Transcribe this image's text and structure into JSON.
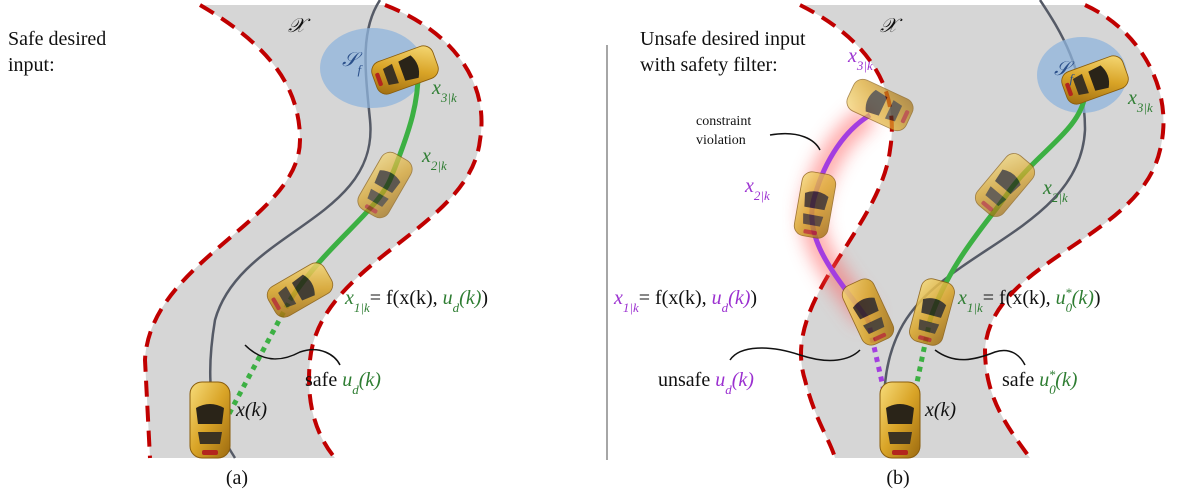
{
  "panel_a": {
    "heading": [
      "Safe desired",
      "input:"
    ],
    "state_space": "𝒳",
    "terminal_set": {
      "symbol": "𝒮",
      "sub": "f"
    },
    "x3": {
      "symbol": "x",
      "sub": "3|k"
    },
    "x2": {
      "symbol": "x",
      "sub": "2|k"
    },
    "x1": {
      "symbol": "x",
      "sub": "1|k",
      "rhs": "= f(x(k), ",
      "input": "u",
      "input_sub": "d",
      "input_arg": "(k)",
      "close": ")"
    },
    "input_note": {
      "prefix": "safe ",
      "input": "u",
      "input_sub": "d",
      "input_arg": "(k)"
    },
    "current_state": "x(k)",
    "caption": "(a)"
  },
  "panel_b": {
    "heading": [
      "Unsafe desired input",
      "with safety filter:"
    ],
    "state_space": "𝒳",
    "terminal_set": {
      "symbol": "𝒮",
      "sub": "f"
    },
    "violation_note": [
      "constraint",
      "violation"
    ],
    "unsafe_x3": {
      "symbol": "x",
      "sub": "3|k"
    },
    "unsafe_x2": {
      "symbol": "x",
      "sub": "2|k"
    },
    "unsafe_x1": {
      "symbol": "x",
      "sub": "1|k",
      "rhs": "= f(x(k), ",
      "input": "u",
      "input_sub": "d",
      "input_arg": "(k)",
      "close": ")"
    },
    "safe_x3": {
      "symbol": "x",
      "sub": "3|k"
    },
    "safe_x2": {
      "symbol": "x",
      "sub": "2|k"
    },
    "safe_x1": {
      "symbol": "x",
      "sub": "1|k",
      "rhs": "= f(x(k), ",
      "input": "u",
      "input_sub": "0",
      "input_sup": "*",
      "input_arg": "(k)",
      "close": ")"
    },
    "unsafe_note": {
      "prefix": "unsafe ",
      "input": "u",
      "input_sub": "d",
      "input_arg": "(k)"
    },
    "safe_note": {
      "prefix": "safe ",
      "input": "u",
      "input_sub": "0",
      "input_sup": "*",
      "input_arg": "(k)"
    },
    "current_state": "x(k)",
    "caption": "(b)"
  }
}
